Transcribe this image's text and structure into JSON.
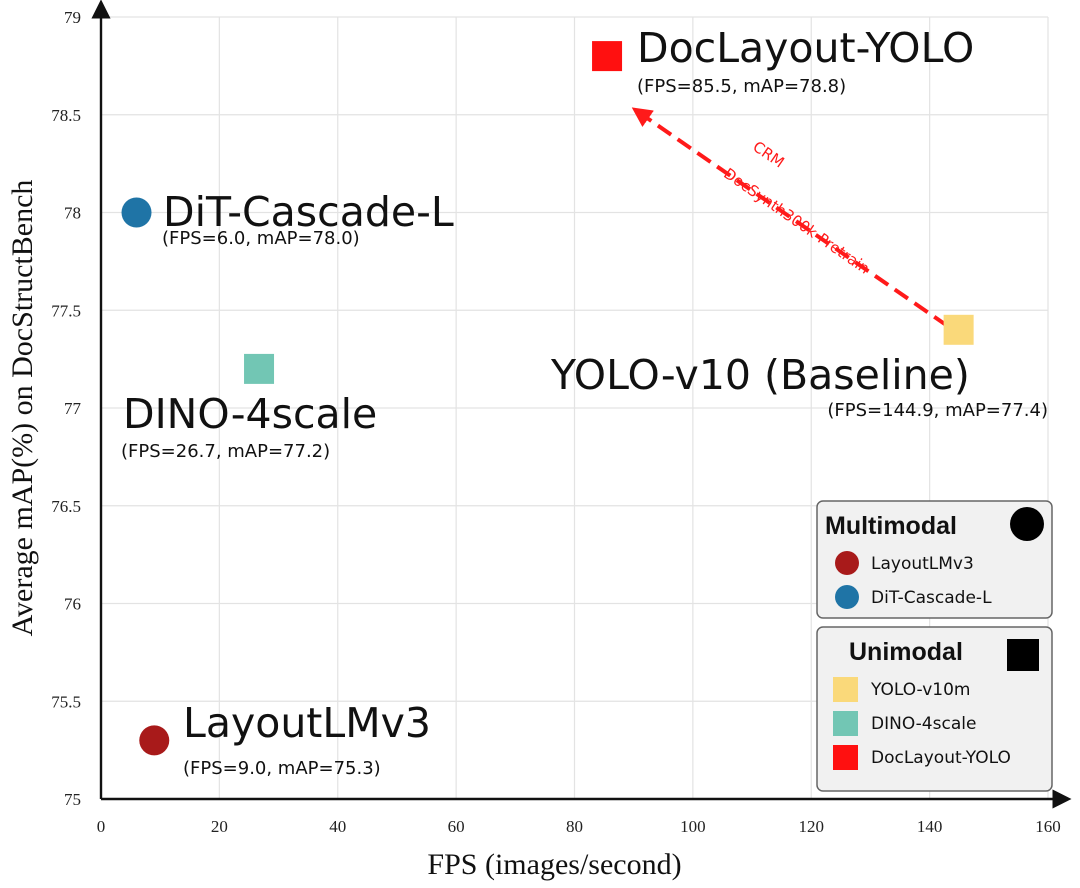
{
  "chart_data": {
    "type": "scatter",
    "xlabel": "FPS (images/second)",
    "ylabel": "Average mAP(%) on DocStructBench",
    "xlim": [
      0,
      160
    ],
    "ylim": [
      75,
      79
    ],
    "xticks": [
      0,
      20,
      40,
      60,
      80,
      100,
      120,
      140,
      160
    ],
    "yticks": [
      75,
      75.5,
      76,
      76.5,
      77,
      77.5,
      78,
      78.5,
      79
    ],
    "grid": true,
    "points": [
      {
        "name": "DiT-Cascade-L",
        "sub": "(FPS=6.0, mAP=78.0)",
        "x": 6.0,
        "y": 78.0,
        "shape": "circle",
        "color": "#1f74a6",
        "label_color": "#111111"
      },
      {
        "name": "DINO-4scale",
        "sub": "(FPS=26.7, mAP=77.2)",
        "x": 26.7,
        "y": 77.2,
        "shape": "square",
        "color": "#72c6b4",
        "label_color": "#111111"
      },
      {
        "name": "LayoutLMv3",
        "sub": "(FPS=9.0, mAP=75.3)",
        "x": 9.0,
        "y": 75.3,
        "shape": "circle",
        "color": "#a81a1a",
        "label_color": "#111111"
      },
      {
        "name": "YOLO-v10 (Baseline)",
        "sub": "(FPS=144.9, mAP=77.4)",
        "x": 144.9,
        "y": 77.4,
        "shape": "square",
        "color": "#fad97a",
        "label_color": "#111111"
      },
      {
        "name": "DocLayout-YOLO",
        "sub": "(FPS=85.5, mAP=78.8)",
        "x": 85.5,
        "y": 78.8,
        "shape": "square",
        "color": "#ff1010",
        "label_color": "#ff1010"
      }
    ],
    "arrow": {
      "from": [
        143,
        77.42
      ],
      "to": [
        90.5,
        78.52
      ],
      "color": "#ff1a1a",
      "labels": [
        "DocSynth300k Pretrain",
        "CRM"
      ]
    },
    "legend": {
      "groups": [
        {
          "title": "Multimodal",
          "marker": "circle",
          "items": [
            {
              "label": "LayoutLMv3",
              "shape": "circle",
              "color": "#a81a1a"
            },
            {
              "label": "DiT-Cascade-L",
              "shape": "circle",
              "color": "#1f74a6"
            }
          ]
        },
        {
          "title": "Unimodal",
          "marker": "square",
          "items": [
            {
              "label": "YOLO-v10m",
              "shape": "square",
              "color": "#fad97a"
            },
            {
              "label": "DINO-4scale",
              "shape": "square",
              "color": "#72c6b4"
            },
            {
              "label": "DocLayout-YOLO",
              "shape": "square",
              "color": "#ff1010"
            }
          ]
        }
      ],
      "placement": "bottom-right"
    }
  }
}
